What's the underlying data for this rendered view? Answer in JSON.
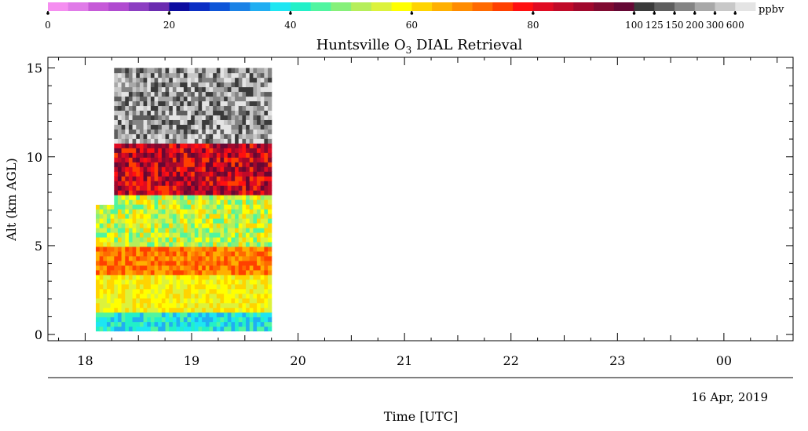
{
  "chart_data": {
    "type": "heatmap",
    "title_main": "Huntsville O",
    "title_sub": "3",
    "title_tail": " DIAL Retrieval",
    "xlabel": "Time [UTC]",
    "ylabel": "Alt (km AGL)",
    "date_label": "16 Apr, 2019",
    "x_ticks": [
      {
        "hour": 18,
        "label": "18"
      },
      {
        "hour": 19,
        "label": "19"
      },
      {
        "hour": 20,
        "label": "20"
      },
      {
        "hour": 21,
        "label": "21"
      },
      {
        "hour": 22,
        "label": "22"
      },
      {
        "hour": 23,
        "label": "23"
      },
      {
        "hour": 24,
        "label": "00"
      }
    ],
    "xlim": [
      17.65,
      24.65
    ],
    "y_ticks": [
      {
        "value": 0,
        "label": "0"
      },
      {
        "value": 5,
        "label": "5"
      },
      {
        "value": 10,
        "label": "10"
      },
      {
        "value": 15,
        "label": "15"
      }
    ],
    "ylim": [
      -0.35,
      15.6
    ],
    "grid": false,
    "colorbar": {
      "unit": "ppbv",
      "position": "top",
      "tick_labels": [
        "0",
        "20",
        "40",
        "60",
        "80",
        "100",
        "125",
        "150",
        "200",
        "300",
        "600"
      ],
      "colors": [
        "#f58ef0",
        "#e07be8",
        "#c65ad8",
        "#b04bd0",
        "#8c3ec2",
        "#6a2bb0",
        "#0c0ca0",
        "#0a2ec4",
        "#0d55d8",
        "#1a82e6",
        "#20aef2",
        "#1ee6f2",
        "#22f0c8",
        "#50f5a0",
        "#86f07a",
        "#b6ee5a",
        "#dcf23c",
        "#ffff00",
        "#ffd400",
        "#ffb000",
        "#ff8c00",
        "#ff6a00",
        "#ff4000",
        "#ff1010",
        "#e00b22",
        "#c00a28",
        "#a0082c",
        "#800a30",
        "#650834",
        "#3a3a3a",
        "#5e5e5e",
        "#848484",
        "#a8a8a8",
        "#c8c8c8",
        "#e4e4e4"
      ]
    },
    "data_coverage": {
      "x_start_hours": 18.1,
      "x_end_hours": 19.75,
      "top_start_hours": 18.25,
      "y_min_km": 0.2,
      "y_max_km": 15.0,
      "low_top_km": 7.3,
      "band_km": [
        {
          "from": 0.2,
          "to": 1.2,
          "level": "cyan-blue"
        },
        {
          "from": 1.2,
          "to": 3.5,
          "level": "yellow"
        },
        {
          "from": 3.5,
          "to": 5.0,
          "level": "orange"
        },
        {
          "from": 5.0,
          "to": 7.8,
          "level": "green-cyan"
        },
        {
          "from": 7.8,
          "to": 10.8,
          "level": "red-darkred"
        },
        {
          "from": 10.8,
          "to": 15.0,
          "level": "grey"
        }
      ]
    }
  }
}
